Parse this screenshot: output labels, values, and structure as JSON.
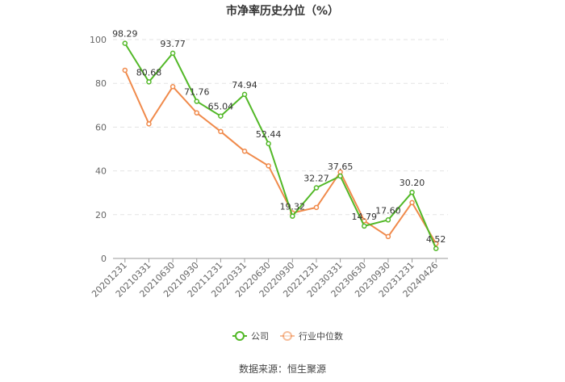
{
  "chart_data": {
    "type": "line",
    "title": "市净率历史分位（%）",
    "xlabel": "",
    "ylabel": "",
    "ylim": [
      0,
      100
    ],
    "y_ticks": [
      0,
      20,
      40,
      60,
      80,
      100
    ],
    "categories": [
      "20201231",
      "20210331",
      "20210630",
      "20210930",
      "20211231",
      "20220331",
      "20220630",
      "20220930",
      "20221231",
      "20230331",
      "20230630",
      "20230930",
      "20231231",
      "20240426"
    ],
    "series": [
      {
        "name": "公司",
        "color": "#52b827",
        "values": [
          98.29,
          80.68,
          93.77,
          71.76,
          65.04,
          74.94,
          52.44,
          19.32,
          32.27,
          37.65,
          14.79,
          17.6,
          30.2,
          4.52
        ],
        "labels": [
          "98.29",
          "80.68",
          "93.77",
          "71.76",
          "65.04",
          "74.94",
          "52.44",
          "19.32",
          "32.27",
          "37.65",
          "14.79",
          "17.60",
          "30.20",
          "4.52"
        ]
      },
      {
        "name": "行业中位数",
        "color": "#f08a4b",
        "values": [
          86.0,
          61.5,
          78.5,
          66.5,
          58.0,
          49.0,
          42.3,
          20.8,
          23.3,
          39.5,
          17.2,
          10.0,
          25.5,
          6.8
        ]
      }
    ],
    "grid": true,
    "legend_position": "bottom-center",
    "source": "数据来源：恒生聚源"
  }
}
